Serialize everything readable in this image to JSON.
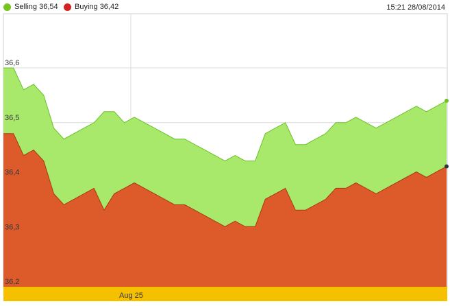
{
  "legend": {
    "selling_label": "Selling 36,54",
    "buying_label": "Buying 36,42",
    "timestamp": "15:21 28/08/2014"
  },
  "colors": {
    "selling": "#a8e86a",
    "selling_line": "#6cc02a",
    "selling_dot": "#76c41e",
    "buying": "#dd5b2a",
    "buying_line": "#a83a10",
    "buying_dot": "#d42222",
    "xaxis_band": "#f5c000",
    "grid": "#dcdcdc"
  },
  "chart_data": {
    "type": "area",
    "y_ticks": [
      "36,2",
      "36,3",
      "36,4",
      "36,5",
      "36,6"
    ],
    "y_tick_values": [
      36.2,
      36.3,
      36.4,
      36.5,
      36.6
    ],
    "ylim": [
      36.2,
      36.6
    ],
    "x_tick_labels": [
      "Aug 25"
    ],
    "grid": true,
    "series": [
      {
        "name": "Selling",
        "values": [
          36.6,
          36.6,
          36.56,
          36.57,
          36.55,
          36.49,
          36.47,
          36.48,
          36.49,
          36.5,
          36.52,
          36.52,
          36.5,
          36.51,
          36.5,
          36.49,
          36.48,
          36.47,
          36.47,
          36.46,
          36.45,
          36.44,
          36.43,
          36.44,
          36.43,
          36.43,
          36.48,
          36.49,
          36.5,
          36.46,
          36.46,
          36.47,
          36.48,
          36.5,
          36.5,
          36.51,
          36.5,
          36.49,
          36.5,
          36.51,
          36.52,
          36.53,
          36.52,
          36.53,
          36.54
        ]
      },
      {
        "name": "Buying",
        "values": [
          36.48,
          36.48,
          36.44,
          36.45,
          36.43,
          36.37,
          36.35,
          36.36,
          36.37,
          36.38,
          36.34,
          36.37,
          36.38,
          36.39,
          36.38,
          36.37,
          36.36,
          36.35,
          36.35,
          36.34,
          36.33,
          36.32,
          36.31,
          36.32,
          36.31,
          36.31,
          36.36,
          36.37,
          36.38,
          36.34,
          36.34,
          36.35,
          36.36,
          36.38,
          36.38,
          36.39,
          36.38,
          36.37,
          36.38,
          36.39,
          36.4,
          36.41,
          36.4,
          36.41,
          36.42
        ]
      }
    ]
  }
}
